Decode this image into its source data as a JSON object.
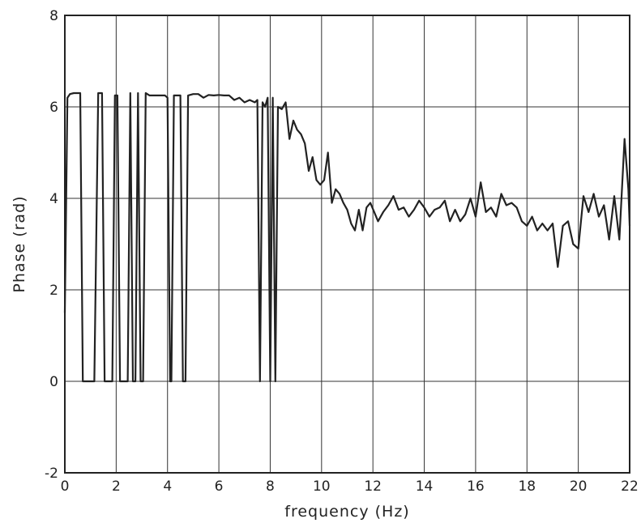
{
  "chart_data": {
    "type": "line",
    "title": "",
    "xlabel": "frequency (Hz)",
    "ylabel": "Phase (rad)",
    "xlim": [
      0,
      22
    ],
    "ylim": [
      -2,
      8
    ],
    "x_ticks": [
      "0",
      "2",
      "4",
      "6",
      "8",
      "10",
      "12",
      "14",
      "16",
      "18",
      "20",
      "22"
    ],
    "y_ticks": [
      "-2",
      "0",
      "2",
      "4",
      "6",
      "8"
    ],
    "grid": true,
    "legend": "none",
    "colors": {
      "line": "#222222",
      "grid": "#333333",
      "frame": "#222222"
    },
    "series": [
      {
        "x": [
          0.0,
          0.1,
          0.2,
          0.35,
          0.5,
          0.6,
          0.7,
          0.8,
          0.95,
          1.05,
          1.15,
          1.3,
          1.45,
          1.55,
          1.65,
          1.75,
          1.85,
          1.95,
          2.05,
          2.15,
          2.25,
          2.35,
          2.45,
          2.55,
          2.65,
          2.75,
          2.85,
          2.95,
          3.05,
          3.15,
          3.3,
          3.5,
          3.7,
          3.9,
          4.0,
          4.1,
          4.15,
          4.25,
          4.4,
          4.5,
          4.6,
          4.7,
          4.8,
          5.0,
          5.2,
          5.4,
          5.6,
          5.8,
          6.0,
          6.2,
          6.4,
          6.6,
          6.8,
          7.0,
          7.2,
          7.4,
          7.5,
          7.6,
          7.7,
          7.8,
          7.9,
          8.0,
          8.1,
          8.2,
          8.3,
          8.45,
          8.6,
          8.75,
          8.9,
          9.05,
          9.2,
          9.35,
          9.5,
          9.65,
          9.8,
          9.95,
          10.1,
          10.25,
          10.4,
          10.55,
          10.7,
          10.85,
          11.0,
          11.15,
          11.3,
          11.45,
          11.6,
          11.75,
          11.9,
          12.05,
          12.2,
          12.4,
          12.6,
          12.8,
          13.0,
          13.2,
          13.4,
          13.6,
          13.8,
          14.0,
          14.2,
          14.4,
          14.6,
          14.8,
          15.0,
          15.2,
          15.4,
          15.6,
          15.8,
          16.0,
          16.2,
          16.4,
          16.6,
          16.8,
          17.0,
          17.2,
          17.4,
          17.6,
          17.8,
          18.0,
          18.2,
          18.4,
          18.6,
          18.8,
          19.0,
          19.2,
          19.4,
          19.6,
          19.8,
          20.0,
          20.2,
          20.4,
          20.6,
          20.8,
          21.0,
          21.2,
          21.4,
          21.6,
          21.8,
          21.95,
          22.0
        ],
        "y": [
          1.5,
          6.2,
          6.28,
          6.3,
          6.3,
          6.3,
          0.0,
          0.0,
          0.0,
          0.0,
          0.0,
          6.3,
          6.3,
          0.0,
          0.0,
          0.0,
          0.0,
          6.25,
          6.25,
          0.0,
          0.0,
          0.0,
          0.0,
          6.3,
          0.0,
          0.0,
          6.3,
          0.0,
          0.0,
          6.3,
          6.25,
          6.25,
          6.25,
          6.25,
          6.2,
          0.0,
          0.0,
          6.25,
          6.25,
          6.25,
          0.0,
          0.0,
          6.25,
          6.28,
          6.28,
          6.2,
          6.26,
          6.25,
          6.26,
          6.25,
          6.25,
          6.15,
          6.2,
          6.1,
          6.15,
          6.1,
          6.15,
          0.0,
          6.1,
          6.0,
          6.2,
          0.0,
          6.2,
          0.0,
          6.0,
          5.95,
          6.1,
          5.3,
          5.7,
          5.5,
          5.4,
          5.2,
          4.6,
          4.9,
          4.4,
          4.3,
          4.4,
          5.0,
          3.9,
          4.2,
          4.1,
          3.9,
          3.75,
          3.45,
          3.3,
          3.75,
          3.3,
          3.8,
          3.9,
          3.7,
          3.5,
          3.7,
          3.85,
          4.05,
          3.75,
          3.8,
          3.6,
          3.75,
          3.95,
          3.8,
          3.6,
          3.75,
          3.8,
          3.95,
          3.5,
          3.75,
          3.5,
          3.65,
          4.0,
          3.6,
          4.35,
          3.7,
          3.8,
          3.6,
          4.1,
          3.85,
          3.9,
          3.8,
          3.5,
          3.4,
          3.6,
          3.3,
          3.45,
          3.3,
          3.45,
          2.5,
          3.4,
          3.5,
          3.0,
          2.9,
          4.05,
          3.7,
          4.1,
          3.6,
          3.85,
          3.1,
          4.05,
          3.1,
          5.3,
          4.2,
          3.4
        ]
      }
    ]
  }
}
